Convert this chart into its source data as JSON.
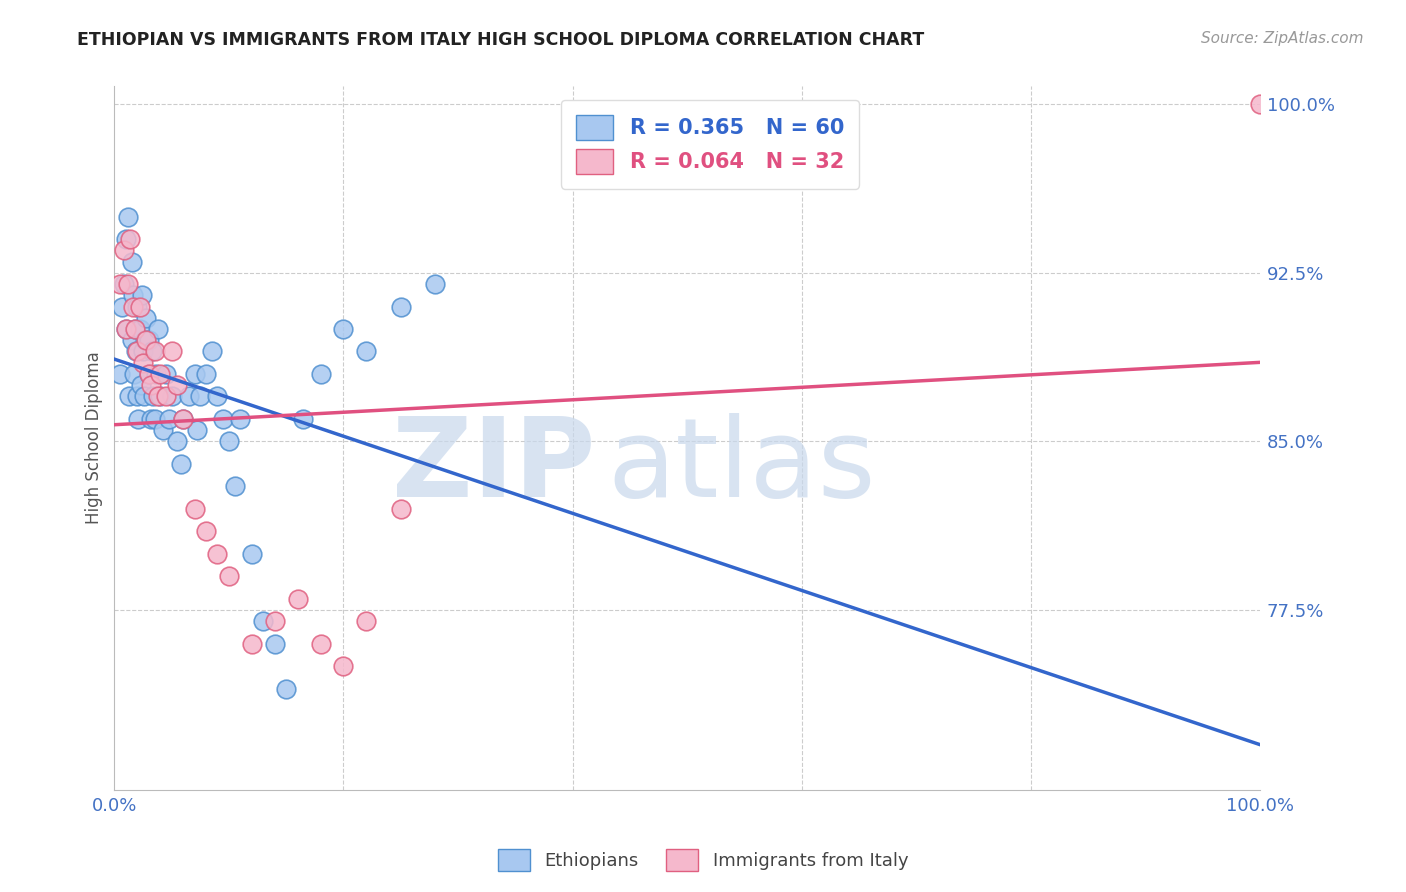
{
  "title": "ETHIOPIAN VS IMMIGRANTS FROM ITALY HIGH SCHOOL DIPLOMA CORRELATION CHART",
  "source": "Source: ZipAtlas.com",
  "ylabel": "High School Diploma",
  "legend_blue_label": "Ethiopians",
  "legend_pink_label": "Immigrants from Italy",
  "r_blue": 0.365,
  "n_blue": 60,
  "r_pink": 0.064,
  "n_pink": 32,
  "blue_color": "#A8C8F0",
  "pink_color": "#F5B8CC",
  "blue_edge_color": "#5090D0",
  "pink_edge_color": "#E06080",
  "blue_line_color": "#3366CC",
  "pink_line_color": "#E05080",
  "xmin": 0.0,
  "xmax": 1.0,
  "ymin": 0.695,
  "ymax": 1.008,
  "ytick_vals": [
    0.775,
    0.85,
    0.925,
    1.0
  ],
  "ytick_labels": [
    "77.5%",
    "85.0%",
    "92.5%",
    "100.0%"
  ],
  "grid_color": "#CCCCCC",
  "background_color": "#FFFFFF",
  "blue_x": [
    0.005,
    0.007,
    0.008,
    0.01,
    0.01,
    0.012,
    0.013,
    0.015,
    0.015,
    0.016,
    0.017,
    0.018,
    0.019,
    0.02,
    0.02,
    0.021,
    0.022,
    0.023,
    0.024,
    0.025,
    0.026,
    0.027,
    0.028,
    0.03,
    0.03,
    0.032,
    0.033,
    0.034,
    0.035,
    0.036,
    0.038,
    0.04,
    0.042,
    0.045,
    0.048,
    0.05,
    0.055,
    0.058,
    0.06,
    0.065,
    0.07,
    0.072,
    0.075,
    0.08,
    0.085,
    0.09,
    0.095,
    0.1,
    0.105,
    0.11,
    0.12,
    0.13,
    0.14,
    0.15,
    0.165,
    0.18,
    0.2,
    0.22,
    0.25,
    0.28
  ],
  "blue_y": [
    0.88,
    0.91,
    0.92,
    0.9,
    0.94,
    0.95,
    0.87,
    0.895,
    0.93,
    0.915,
    0.88,
    0.9,
    0.89,
    0.87,
    0.91,
    0.86,
    0.9,
    0.875,
    0.915,
    0.89,
    0.87,
    0.895,
    0.905,
    0.88,
    0.895,
    0.86,
    0.89,
    0.87,
    0.86,
    0.88,
    0.9,
    0.87,
    0.855,
    0.88,
    0.86,
    0.87,
    0.85,
    0.84,
    0.86,
    0.87,
    0.88,
    0.855,
    0.87,
    0.88,
    0.89,
    0.87,
    0.86,
    0.85,
    0.83,
    0.86,
    0.8,
    0.77,
    0.76,
    0.74,
    0.86,
    0.88,
    0.9,
    0.89,
    0.91,
    0.92
  ],
  "pink_x": [
    0.005,
    0.008,
    0.01,
    0.012,
    0.014,
    0.016,
    0.018,
    0.02,
    0.022,
    0.025,
    0.028,
    0.03,
    0.032,
    0.035,
    0.038,
    0.04,
    0.045,
    0.05,
    0.055,
    0.06,
    0.07,
    0.08,
    0.09,
    0.1,
    0.12,
    0.14,
    0.16,
    0.18,
    0.2,
    0.22,
    0.25,
    1.0
  ],
  "pink_y": [
    0.92,
    0.935,
    0.9,
    0.92,
    0.94,
    0.91,
    0.9,
    0.89,
    0.91,
    0.885,
    0.895,
    0.88,
    0.875,
    0.89,
    0.87,
    0.88,
    0.87,
    0.89,
    0.875,
    0.86,
    0.82,
    0.81,
    0.8,
    0.79,
    0.76,
    0.77,
    0.78,
    0.76,
    0.75,
    0.77,
    0.82,
    1.0
  ],
  "watermark_zip_color": "#C8D8EC",
  "watermark_atlas_color": "#C8D8EC"
}
